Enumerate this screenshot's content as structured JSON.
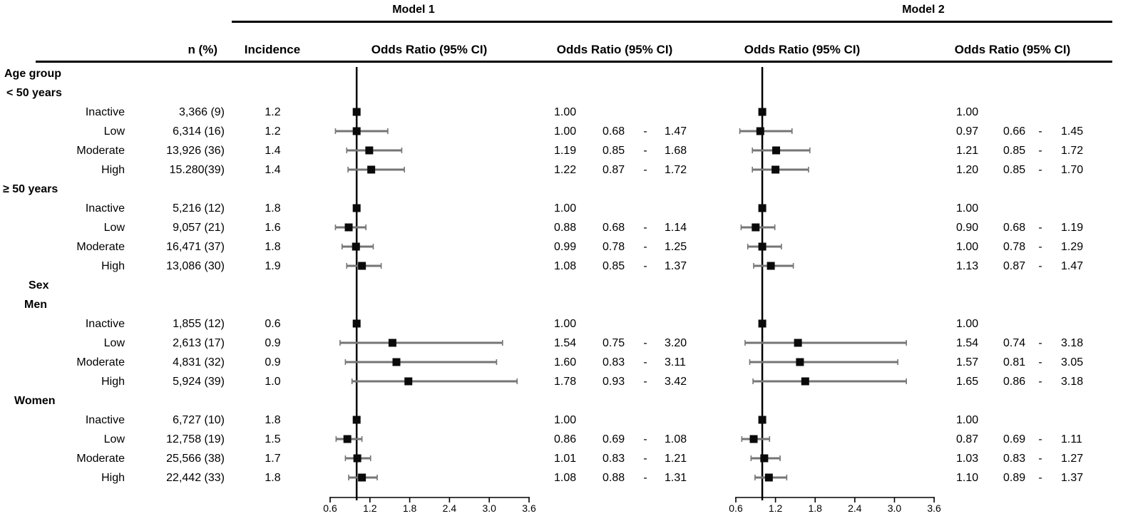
{
  "title_row": {
    "model1": "Model 1",
    "model2": "Model 2"
  },
  "column_headers": {
    "n": "n (%)",
    "incidence": "Incidence",
    "or_ci": "Odds Ratio (95% CI)"
  },
  "symbols": {
    "dash": "-"
  },
  "colors": {
    "marker": "#0a0a0a",
    "ci_line": "#757575",
    "axis": "#000000",
    "ref_line": "#000000"
  },
  "chart_data": {
    "type": "forest",
    "axis": {
      "ticks": [
        "0.6",
        "1.2",
        "1.8",
        "2.4",
        "3.0",
        "3.6"
      ],
      "min": 0.6,
      "max": 3.6,
      "ref": 1.0
    },
    "legend": "black squares = odds ratio point estimate; gray horizontal lines = 95% CI; vertical line = OR 1.0 reference",
    "rows": [
      {
        "kind": "group",
        "label": "Age group",
        "indent": 6
      },
      {
        "kind": "group",
        "label": "< 50 years",
        "indent": 9
      },
      {
        "kind": "item",
        "label": "Inactive",
        "n": "3,366 (9)",
        "incidence": "1.2",
        "m1": {
          "or": "1.00"
        },
        "m2": {
          "or": "1.00"
        }
      },
      {
        "kind": "item",
        "label": "Low",
        "n": "6,314 (16)",
        "incidence": "1.2",
        "m1": {
          "or": "1.00",
          "lo": "0.68",
          "hi": "1.47"
        },
        "m2": {
          "or": "0.97",
          "lo": "0.66",
          "hi": "1.45"
        }
      },
      {
        "kind": "item",
        "label": "Moderate",
        "n": "13,926 (36)",
        "incidence": "1.4",
        "m1": {
          "or": "1.19",
          "lo": "0.85",
          "hi": "1.68"
        },
        "m2": {
          "or": "1.21",
          "lo": "0.85",
          "hi": "1.72"
        }
      },
      {
        "kind": "item",
        "label": "High",
        "n": "15.280(39)",
        "incidence": "1.4",
        "m1": {
          "or": "1.22",
          "lo": "0.87",
          "hi": "1.72"
        },
        "m2": {
          "or": "1.20",
          "lo": "0.85",
          "hi": "1.70"
        }
      },
      {
        "kind": "group",
        "label": "≥ 50 years",
        "indent": 4
      },
      {
        "kind": "item",
        "label": "Inactive",
        "n": "5,216 (12)",
        "incidence": "1.8",
        "m1": {
          "or": "1.00"
        },
        "m2": {
          "or": "1.00"
        }
      },
      {
        "kind": "item",
        "label": "Low",
        "n": "9,057 (21)",
        "incidence": "1.6",
        "m1": {
          "or": "0.88",
          "lo": "0.68",
          "hi": "1.14"
        },
        "m2": {
          "or": "0.90",
          "lo": "0.68",
          "hi": "1.19"
        }
      },
      {
        "kind": "item",
        "label": "Moderate",
        "n": "16,471 (37)",
        "incidence": "1.8",
        "m1": {
          "or": "0.99",
          "lo": "0.78",
          "hi": "1.25"
        },
        "m2": {
          "or": "1.00",
          "lo": "0.78",
          "hi": "1.29"
        }
      },
      {
        "kind": "item",
        "label": "High",
        "n": "13,086 (30)",
        "incidence": "1.9",
        "m1": {
          "or": "1.08",
          "lo": "0.85",
          "hi": "1.37"
        },
        "m2": {
          "or": "1.13",
          "lo": "0.87",
          "hi": "1.47"
        }
      },
      {
        "kind": "group",
        "label": "Sex",
        "indent": 40
      },
      {
        "kind": "group",
        "label": "Men",
        "indent": 34
      },
      {
        "kind": "item",
        "label": "Inactive",
        "n": "1,855 (12)",
        "incidence": "0.6",
        "m1": {
          "or": "1.00"
        },
        "m2": {
          "or": "1.00"
        }
      },
      {
        "kind": "item",
        "label": "Low",
        "n": "2,613 (17)",
        "incidence": "0.9",
        "m1": {
          "or": "1.54",
          "lo": "0.75",
          "hi": "3.20"
        },
        "m2": {
          "or": "1.54",
          "lo": "0.74",
          "hi": "3.18"
        }
      },
      {
        "kind": "item",
        "label": "Moderate",
        "n": "4,831 (32)",
        "incidence": "0.9",
        "m1": {
          "or": "1.60",
          "lo": "0.83",
          "hi": "3.11"
        },
        "m2": {
          "or": "1.57",
          "lo": "0.81",
          "hi": "3.05"
        }
      },
      {
        "kind": "item",
        "label": "High",
        "n": "5,924 (39)",
        "incidence": "1.0",
        "m1": {
          "or": "1.78",
          "lo": "0.93",
          "hi": "3.42"
        },
        "m2": {
          "or": "1.65",
          "lo": "0.86",
          "hi": "3.18"
        }
      },
      {
        "kind": "group",
        "label": "Women",
        "indent": 20
      },
      {
        "kind": "item",
        "label": "Inactive",
        "n": "6,727 (10)",
        "incidence": "1.8",
        "m1": {
          "or": "1.00"
        },
        "m2": {
          "or": "1.00"
        }
      },
      {
        "kind": "item",
        "label": "Low",
        "n": "12,758 (19)",
        "incidence": "1.5",
        "m1": {
          "or": "0.86",
          "lo": "0.69",
          "hi": "1.08"
        },
        "m2": {
          "or": "0.87",
          "lo": "0.69",
          "hi": "1.11"
        }
      },
      {
        "kind": "item",
        "label": "Moderate",
        "n": "25,566 (38)",
        "incidence": "1.7",
        "m1": {
          "or": "1.01",
          "lo": "0.83",
          "hi": "1.21"
        },
        "m2": {
          "or": "1.03",
          "lo": "0.83",
          "hi": "1.27"
        }
      },
      {
        "kind": "item",
        "label": "High",
        "n": "22,442 (33)",
        "incidence": "1.8",
        "m1": {
          "or": "1.08",
          "lo": "0.88",
          "hi": "1.31"
        },
        "m2": {
          "or": "1.10",
          "lo": "0.89",
          "hi": "1.37"
        }
      }
    ]
  }
}
